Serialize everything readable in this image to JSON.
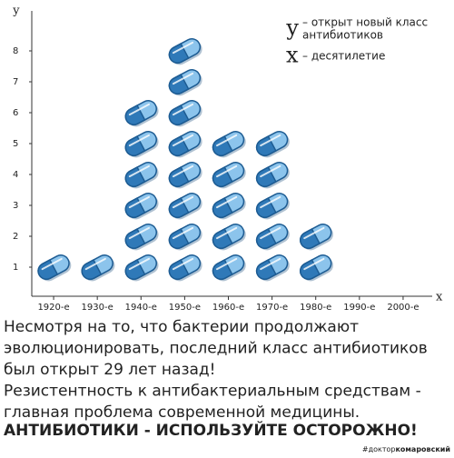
{
  "chart_data": {
    "type": "pictogram",
    "y_label": "у",
    "x_label": "х",
    "categories": [
      "1920-е",
      "1930-е",
      "1940-е",
      "1950-е",
      "1960-е",
      "1970-е",
      "1980-е",
      "1990-е",
      "2000-е"
    ],
    "values": [
      1,
      1,
      6,
      8,
      5,
      5,
      2,
      0,
      0
    ],
    "color": "#2f79b8",
    "ylim": [
      0,
      9
    ],
    "yticks": [
      1,
      2,
      3,
      4,
      5,
      6,
      7,
      8
    ],
    "legend": [
      {
        "symbol": "у",
        "text": [
          "– открыт новый класс",
          "антибиотиков"
        ]
      },
      {
        "symbol": "х",
        "text": [
          "– десятилетие"
        ]
      }
    ]
  },
  "text": {
    "lines": [
      "Несмотря на то, что бактерии продолжают",
      "эволюционировать, последний класс антибиотиков",
      "был открыт 29 лет назад!",
      "Резистентность к антибактериальным средствам -",
      "главная проблема современной медицины."
    ],
    "slogan": "АНТИБИОТИКИ - ИСПОЛЬЗУЙТЕ ОСТОРОЖНО!",
    "hashtag": [
      "#доктор",
      "комаровский"
    ]
  }
}
